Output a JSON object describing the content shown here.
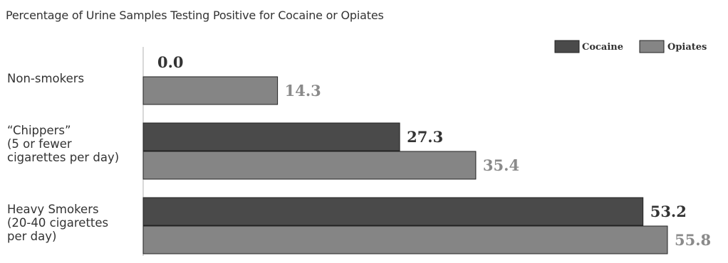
{
  "chart_data": {
    "type": "bar",
    "orientation": "horizontal",
    "title": "Percentage of Urine Samples Testing Positive for Cocaine or Opiates",
    "categories": [
      "Non-smokers",
      "“Chippers”\n(5 or fewer\ncigarettes per day)",
      "Heavy Smokers\n(20-40 cigarettes\nper day)"
    ],
    "series": [
      {
        "name": "Cocaine",
        "values": [
          0.0,
          27.3,
          53.2
        ],
        "color": "#4a4a4a",
        "label_color": "#333333"
      },
      {
        "name": "Opiates",
        "values": [
          14.3,
          35.4,
          55.8
        ],
        "color": "#858585",
        "label_color": "#8a8a8a"
      }
    ],
    "xlim": [
      0,
      60
    ],
    "grid": false,
    "legend_position": "top-right"
  }
}
